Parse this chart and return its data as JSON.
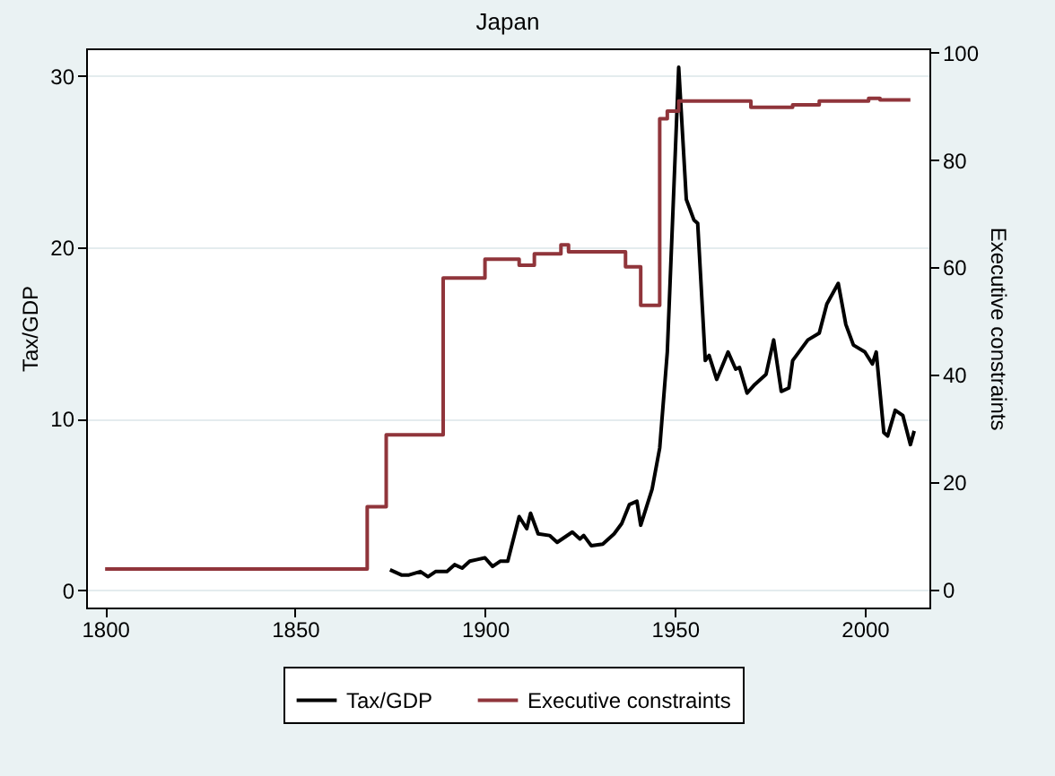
{
  "chart_data": {
    "type": "line",
    "title": "Japan",
    "ylabel": "Tax/GDP",
    "y2label": "Executive constraints",
    "xlim": [
      1795,
      2017
    ],
    "xticks": [
      1800,
      1850,
      1900,
      1950,
      2000
    ],
    "ylim": [
      -1,
      31.6
    ],
    "yticks": [
      0,
      10,
      20,
      30
    ],
    "y2lim": [
      -3.4,
      100.8
    ],
    "y2ticks": [
      0,
      20,
      40,
      60,
      80,
      100
    ],
    "grid": "y",
    "legend": "bottom",
    "series": [
      {
        "name": "Tax/GDP",
        "color": "#000000",
        "x": [
          1875,
          1878,
          1880,
          1883,
          1885,
          1887,
          1890,
          1892,
          1894,
          1896,
          1898,
          1900,
          1902,
          1904,
          1906,
          1909,
          1911,
          1912,
          1914,
          1917,
          1919,
          1923,
          1925,
          1926,
          1928,
          1931,
          1934,
          1936,
          1938,
          1940,
          1941,
          1944,
          1946,
          1948,
          1951,
          1953,
          1955,
          1956,
          1958,
          1959,
          1961,
          1964,
          1966,
          1967,
          1969,
          1971,
          1974,
          1976,
          1978,
          1980,
          1981,
          1985,
          1988,
          1990,
          1993,
          1995,
          1997,
          2000,
          2002,
          2003,
          2005,
          2006,
          2008,
          2010,
          2012,
          2013
        ],
        "values": [
          1.2,
          0.9,
          0.9,
          1.1,
          0.8,
          1.1,
          1.1,
          1.5,
          1.3,
          1.7,
          1.8,
          1.9,
          1.4,
          1.7,
          1.7,
          4.3,
          3.6,
          4.5,
          3.3,
          3.2,
          2.8,
          3.4,
          3.0,
          3.2,
          2.6,
          2.7,
          3.3,
          3.9,
          5.0,
          5.2,
          3.8,
          5.9,
          8.3,
          13.9,
          30.5,
          22.8,
          21.6,
          21.4,
          13.4,
          13.7,
          12.3,
          13.9,
          12.9,
          13.0,
          11.5,
          12.0,
          12.6,
          14.6,
          11.6,
          11.8,
          13.4,
          14.6,
          15.0,
          16.7,
          17.9,
          15.5,
          14.3,
          13.9,
          13.2,
          13.9,
          9.2,
          9.0,
          10.5,
          10.2,
          8.5,
          9.3
        ]
      },
      {
        "name": "Executive constraints",
        "color": "#90353b",
        "axis": "y2",
        "type": "step",
        "x": [
          1800,
          1869,
          1874,
          1889,
          1900,
          1909,
          1913,
          1920,
          1922,
          1937,
          1941,
          1946,
          1948,
          1951,
          1970,
          1981,
          1988,
          2001,
          2004,
          2012
        ],
        "values": [
          3.8,
          15.4,
          28.8,
          58,
          61.5,
          60.4,
          62.5,
          64.2,
          62.9,
          60.1,
          52.9,
          87.7,
          89.1,
          91,
          89.8,
          90.3,
          91,
          91.5,
          91.2,
          91.2
        ]
      }
    ]
  }
}
